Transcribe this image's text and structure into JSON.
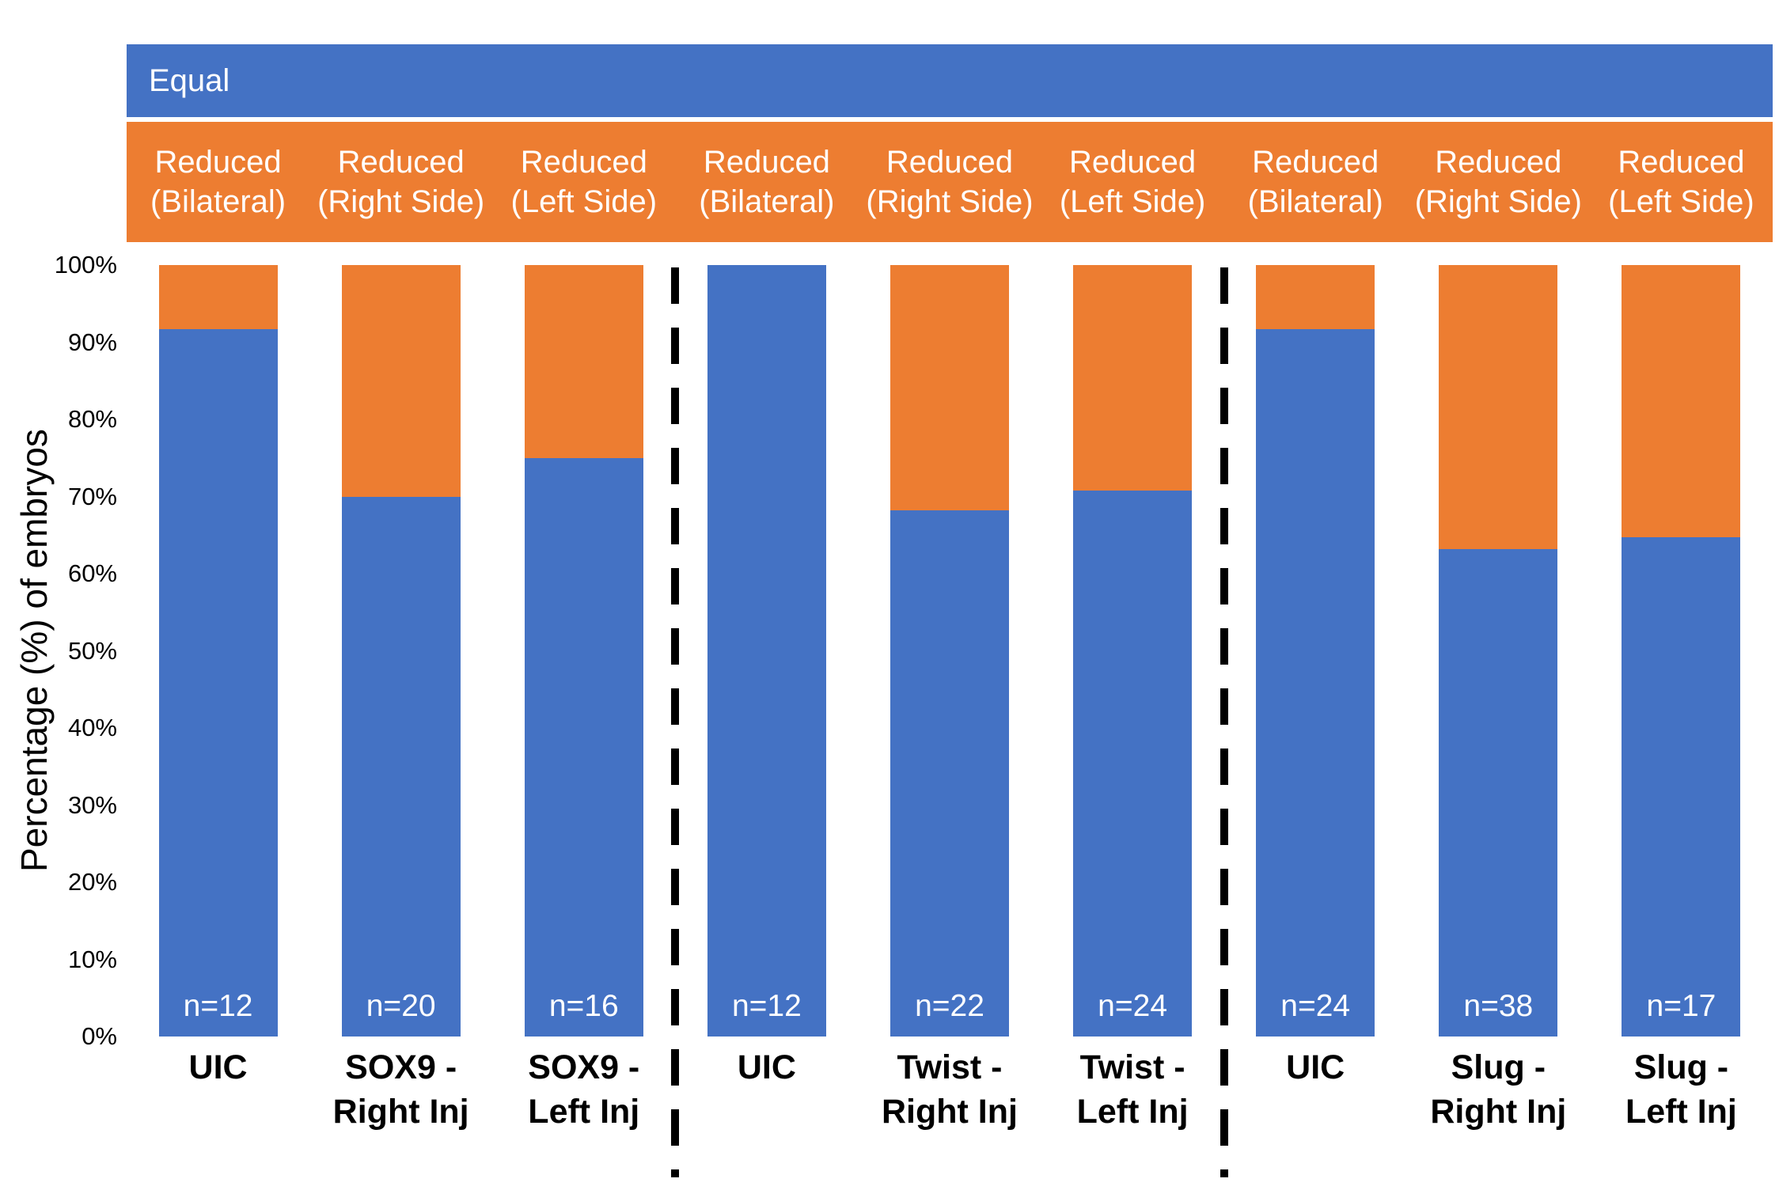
{
  "colors": {
    "equal": "#4472C4",
    "reduced": "#ED7D31",
    "text": "#000000",
    "bar_label_text": "#ffffff"
  },
  "legend": {
    "equal_label": "Equal",
    "reduced_labels": [
      "Reduced\n(Bilateral)",
      "Reduced\n(Right Side)",
      "Reduced\n(Left Side)",
      "Reduced\n(Bilateral)",
      "Reduced\n(Right Side)",
      "Reduced\n(Left Side)",
      "Reduced\n(Bilateral)",
      "Reduced\n(Right Side)",
      "Reduced\n(Left Side)"
    ]
  },
  "chart_data": {
    "type": "bar",
    "stacked": true,
    "title": "",
    "xlabel": "",
    "ylabel": "Percentage (%) of embryos",
    "ylim": [
      0,
      100
    ],
    "yticks": [
      "0%",
      "10%",
      "20%",
      "30%",
      "40%",
      "50%",
      "60%",
      "70%",
      "80%",
      "90%",
      "100%"
    ],
    "grid": false,
    "legend_position": "top",
    "categories": [
      "UIC",
      "SOX9 -\nRight Inj",
      "SOX9 -\nLeft Inj",
      "UIC",
      "Twist -\nRight Inj",
      "Twist -\nLeft Inj",
      "UIC",
      "Slug -\nRight Inj",
      "Slug -\nLeft Inj"
    ],
    "series": [
      {
        "name": "Equal",
        "color": "#4472C4",
        "values": [
          91.7,
          70.0,
          75.0,
          100.0,
          68.2,
          70.8,
          91.7,
          63.2,
          64.7
        ]
      },
      {
        "name": "Reduced",
        "color": "#ED7D31",
        "values": [
          8.3,
          30.0,
          25.0,
          0.0,
          31.8,
          29.2,
          8.3,
          36.8,
          35.3
        ]
      }
    ],
    "bar_n_labels": [
      "n=12",
      "n=20",
      "n=16",
      "n=12",
      "n=22",
      "n=24",
      "n=24",
      "n=38",
      "n=17"
    ],
    "group_separators_after": [
      2,
      5
    ]
  }
}
